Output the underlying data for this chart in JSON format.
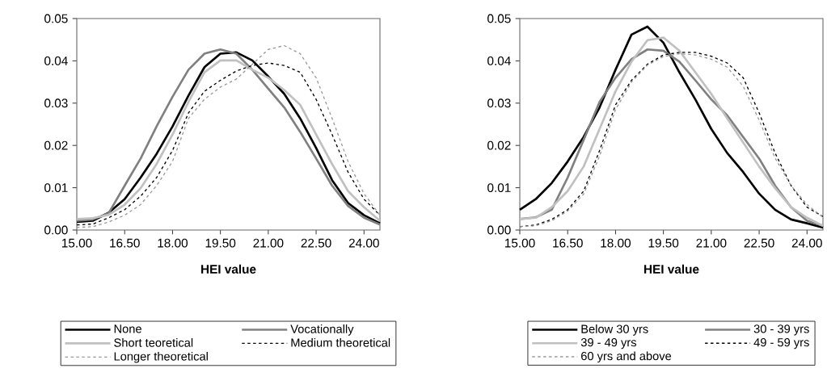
{
  "chart_data": [
    {
      "type": "line",
      "xlabel": "HEI value",
      "legend": "bottom",
      "x": [
        15,
        15.5,
        16,
        16.5,
        17,
        17.5,
        18,
        18.5,
        19,
        19.5,
        20,
        20.5,
        21,
        21.5,
        22,
        22.5,
        23,
        23.5,
        24,
        24.5
      ],
      "xlim": [
        15,
        24.5
      ],
      "ylim": [
        0,
        0.05
      ],
      "xticks": [
        {
          "value": 15,
          "label": "15.00"
        },
        {
          "value": 16.5,
          "label": "16.50"
        },
        {
          "value": 18,
          "label": "18.00"
        },
        {
          "value": 19.5,
          "label": "19.50"
        },
        {
          "value": 21,
          "label": "21.00"
        },
        {
          "value": 22.5,
          "label": "22.50"
        },
        {
          "value": 24,
          "label": "24.00"
        }
      ],
      "yticks": [
        {
          "value": 0,
          "label": "0.00"
        },
        0.01,
        0.02,
        0.03,
        0.04,
        0.05
      ],
      "series": [
        {
          "name": "None",
          "color": "#000000",
          "line_style": "solid",
          "values": [
            0.0019,
            0.0022,
            0.0041,
            0.0073,
            0.0124,
            0.018,
            0.0245,
            0.0318,
            0.0385,
            0.0417,
            0.042,
            0.0401,
            0.0363,
            0.0322,
            0.0264,
            0.0194,
            0.0118,
            0.0064,
            0.0035,
            0.0016
          ]
        },
        {
          "name": "Vocationally",
          "color": "#808080",
          "line_style": "solid",
          "values": [
            0.0022,
            0.0025,
            0.004,
            0.0105,
            0.0169,
            0.0245,
            0.0315,
            0.0379,
            0.0417,
            0.0427,
            0.0417,
            0.0379,
            0.0334,
            0.029,
            0.0232,
            0.0169,
            0.0105,
            0.0057,
            0.0029,
            0.0013
          ]
        },
        {
          "name": "Short teoretical",
          "color": "#c0c0c0",
          "line_style": "solid",
          "values": [
            0.0026,
            0.0028,
            0.0036,
            0.006,
            0.0099,
            0.0156,
            0.0226,
            0.0303,
            0.0373,
            0.0401,
            0.0401,
            0.0379,
            0.036,
            0.0331,
            0.0296,
            0.0226,
            0.0156,
            0.0092,
            0.0054,
            0.0022
          ]
        },
        {
          "name": "Medium theoretical",
          "color": "#000000",
          "line_style": "dashed",
          "values": [
            0.0012,
            0.0014,
            0.0029,
            0.0048,
            0.008,
            0.0124,
            0.0188,
            0.0277,
            0.0328,
            0.0354,
            0.0376,
            0.0389,
            0.0395,
            0.0389,
            0.0373,
            0.0309,
            0.0226,
            0.0137,
            0.0073,
            0.0035
          ]
        },
        {
          "name": "Longer theoretical",
          "color": "#999999",
          "line_style": "dashed",
          "values": [
            0.0006,
            0.0008,
            0.0019,
            0.0035,
            0.006,
            0.0105,
            0.0162,
            0.0264,
            0.0309,
            0.0338,
            0.0357,
            0.0392,
            0.0427,
            0.0436,
            0.0417,
            0.036,
            0.0264,
            0.0162,
            0.0086,
            0.0035
          ]
        }
      ]
    },
    {
      "type": "line",
      "xlabel": "HEI value",
      "legend": "bottom",
      "x": [
        15,
        15.5,
        16,
        16.5,
        17,
        17.5,
        18,
        18.5,
        19,
        19.5,
        20,
        20.5,
        21,
        21.5,
        22,
        22.5,
        23,
        23.5,
        24,
        24.5
      ],
      "xlim": [
        15,
        24.5
      ],
      "ylim": [
        0,
        0.05
      ],
      "xticks": [
        {
          "value": 15,
          "label": "15.00"
        },
        {
          "value": 16.5,
          "label": "16.50"
        },
        {
          "value": 18,
          "label": "18.00"
        },
        {
          "value": 19.5,
          "label": "19.50"
        },
        {
          "value": 21,
          "label": "21.00"
        },
        {
          "value": 22.5,
          "label": "22.50"
        },
        {
          "value": 24,
          "label": "24.00"
        }
      ],
      "yticks": [
        {
          "value": 0,
          "label": "0.00"
        },
        0.01,
        0.02,
        0.03,
        0.04,
        0.05
      ],
      "series": [
        {
          "name": "Below 30 yrs",
          "color": "#000000",
          "line_style": "solid",
          "values": [
            0.0048,
            0.0073,
            0.0111,
            0.0162,
            0.022,
            0.029,
            0.0379,
            0.0462,
            0.0481,
            0.0443,
            0.0373,
            0.0309,
            0.0239,
            0.0182,
            0.0137,
            0.0086,
            0.0048,
            0.0025,
            0.0016,
            0.0006
          ]
        },
        {
          "name": "30 - 39 yrs",
          "color": "#808080",
          "line_style": "solid",
          "values": [
            0.0026,
            0.003,
            0.0048,
            0.0124,
            0.0213,
            0.0303,
            0.036,
            0.0404,
            0.0427,
            0.0424,
            0.0398,
            0.0354,
            0.0309,
            0.0271,
            0.022,
            0.0169,
            0.0105,
            0.0054,
            0.0022,
            0.001
          ]
        },
        {
          "name": "39 - 49 yrs",
          "color": "#c0c0c0",
          "line_style": "solid",
          "values": [
            0.0026,
            0.0029,
            0.0054,
            0.0092,
            0.015,
            0.0239,
            0.0328,
            0.0398,
            0.0449,
            0.0455,
            0.0424,
            0.0373,
            0.0322,
            0.0264,
            0.0207,
            0.015,
            0.0099,
            0.0054,
            0.0029,
            0.001
          ]
        },
        {
          "name": "49 - 59 yrs",
          "color": "#000000",
          "line_style": "dashed",
          "values": [
            0.0008,
            0.0012,
            0.0025,
            0.0048,
            0.0092,
            0.0188,
            0.0296,
            0.0354,
            0.0392,
            0.0414,
            0.042,
            0.042,
            0.0411,
            0.0395,
            0.036,
            0.0277,
            0.0182,
            0.0105,
            0.0054,
            0.0032
          ]
        },
        {
          "name": "60 yrs and above",
          "color": "#999999",
          "line_style": "dashed",
          "values": [
            0.0008,
            0.001,
            0.0022,
            0.0045,
            0.0085,
            0.0175,
            0.0285,
            0.035,
            0.039,
            0.041,
            0.0417,
            0.0414,
            0.0404,
            0.0385,
            0.034,
            0.026,
            0.017,
            0.0105,
            0.006,
            0.003
          ]
        }
      ]
    }
  ]
}
